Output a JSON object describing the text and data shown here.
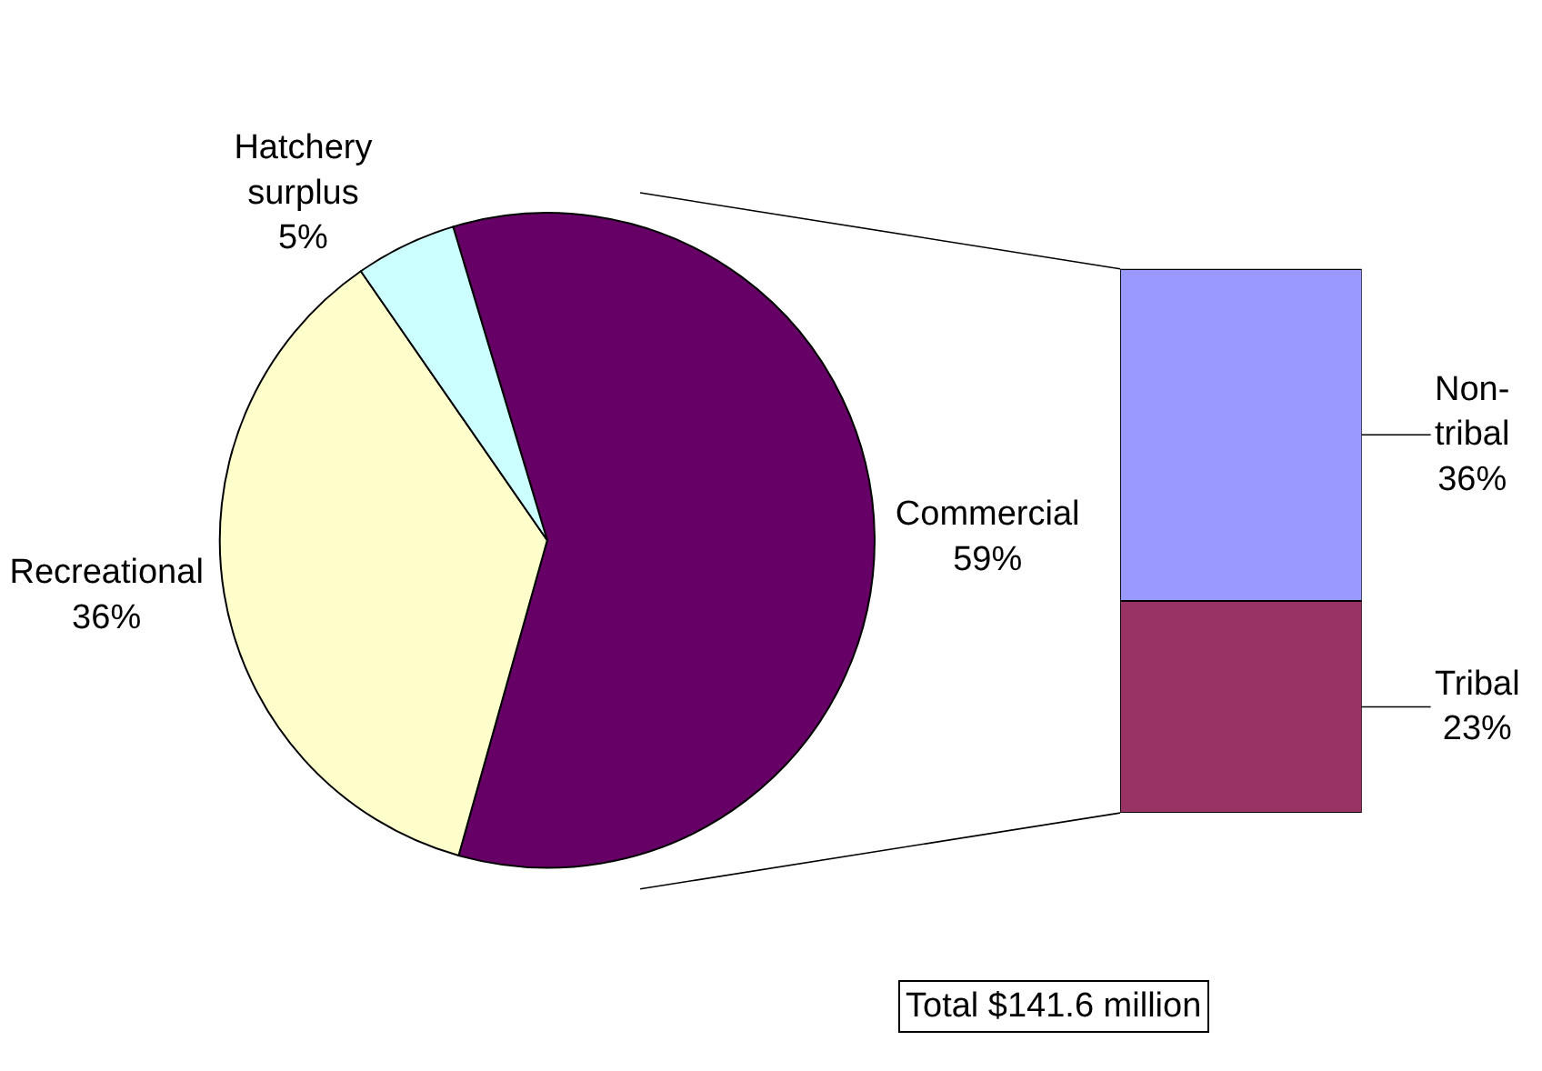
{
  "chart_data": [
    {
      "type": "pie",
      "categories": [
        "Commercial",
        "Recreational",
        "Hatchery surplus"
      ],
      "values": [
        59,
        36,
        5
      ],
      "value_labels": [
        "59%",
        "36%",
        "5%"
      ],
      "colors": [
        "#660066",
        "#ffffcc",
        "#ccffff"
      ],
      "annotations": [
        "Total $141.6 million"
      ]
    },
    {
      "type": "bar",
      "stacked": true,
      "categories": [
        null
      ],
      "series": [
        {
          "name": "Tribal",
          "color": "#993366",
          "values": [
            23
          ],
          "value_labels": [
            "23%"
          ]
        },
        {
          "name": "Non-tribal",
          "color": "#9999ff",
          "values": [
            36
          ],
          "value_labels": [
            "36%"
          ]
        }
      ]
    }
  ]
}
